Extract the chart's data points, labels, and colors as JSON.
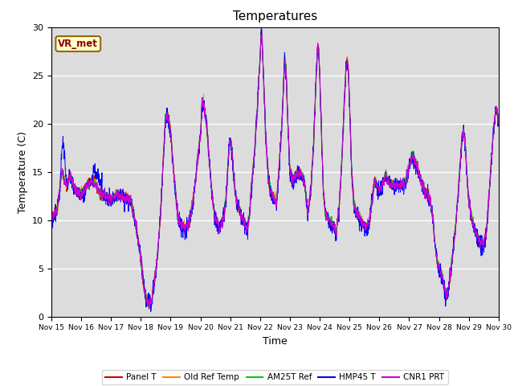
{
  "title": "Temperatures",
  "xlabel": "Time",
  "ylabel": "Temperature (C)",
  "ylim": [
    0,
    30
  ],
  "xlim_days": [
    15,
    30
  ],
  "xtick_labels": [
    "Nov 15",
    "Nov 16",
    "Nov 17",
    "Nov 18",
    "Nov 19",
    "Nov 20",
    "Nov 21",
    "Nov 22",
    "Nov 23",
    "Nov 24",
    "Nov 25",
    "Nov 26",
    "Nov 27",
    "Nov 28",
    "Nov 29",
    "Nov 30"
  ],
  "series_names": [
    "Panel T",
    "Old Ref Temp",
    "AM25T Ref",
    "HMP45 T",
    "CNR1 PRT"
  ],
  "series_colors": [
    "#cc0000",
    "#ff8800",
    "#00cc00",
    "#0000ff",
    "#cc00cc"
  ],
  "bg_color": "#dcdcdc",
  "fig_bg": "#ffffff",
  "vr_met_label": "VR_met",
  "num_points": 2160
}
